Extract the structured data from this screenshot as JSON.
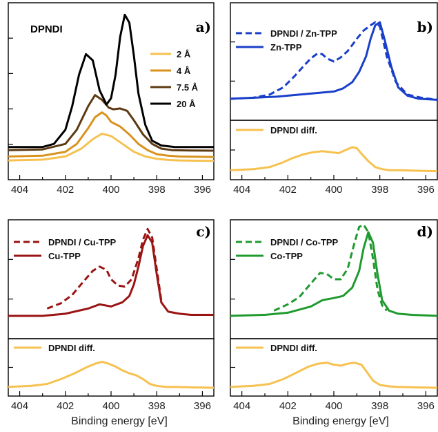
{
  "figure": {
    "xlabel": "Binding energy [eV]",
    "xlim": [
      404.5,
      395.5
    ],
    "xticks": [
      404,
      402,
      400,
      398,
      396
    ]
  },
  "chart_data": [
    {
      "id": "a",
      "type": "line",
      "panel_label": "a)",
      "title": "DPNDI",
      "xlim": [
        404.5,
        395.5
      ],
      "ylim": [
        0,
        1
      ],
      "legend_position": "center-right",
      "series": [
        {
          "name": "2 Å",
          "color": "#f6c14f",
          "dash": false,
          "x": [
            404.5,
            403,
            402,
            401.3,
            400.8,
            400.4,
            400,
            399.5,
            399,
            398.5,
            398,
            397.5,
            397,
            396,
            395.5
          ],
          "y": [
            0.055,
            0.06,
            0.08,
            0.13,
            0.19,
            0.225,
            0.21,
            0.16,
            0.11,
            0.08,
            0.065,
            0.058,
            0.055,
            0.053,
            0.052
          ]
        },
        {
          "name": "4 Å",
          "color": "#d8921e",
          "dash": false,
          "x": [
            404.5,
            403,
            402,
            401.5,
            401,
            400.7,
            400.4,
            400.2,
            400,
            399.6,
            399.2,
            398.8,
            398.4,
            398,
            397.5,
            397,
            396,
            395.5
          ],
          "y": [
            0.08,
            0.085,
            0.11,
            0.16,
            0.26,
            0.33,
            0.36,
            0.34,
            0.3,
            0.27,
            0.22,
            0.16,
            0.12,
            0.095,
            0.085,
            0.08,
            0.078,
            0.077
          ]
        },
        {
          "name": "7.5 Å",
          "color": "#5d3a12",
          "dash": false,
          "x": [
            404.5,
            403,
            402,
            401.5,
            401,
            400.7,
            400.4,
            400.1,
            399.9,
            399.6,
            399.3,
            399,
            398.6,
            398.2,
            397.8,
            397.3,
            396.5,
            395.5
          ],
          "y": [
            0.12,
            0.125,
            0.16,
            0.25,
            0.4,
            0.47,
            0.44,
            0.39,
            0.38,
            0.385,
            0.37,
            0.31,
            0.22,
            0.16,
            0.13,
            0.12,
            0.118,
            0.117
          ]
        },
        {
          "name": "20 Å",
          "color": "#000000",
          "dash": false,
          "x": [
            404.5,
            403,
            402.5,
            402,
            401.7,
            401.4,
            401.1,
            400.8,
            400.5,
            400.2,
            400,
            399.8,
            399.6,
            399.4,
            399.2,
            399,
            398.8,
            398.5,
            398.2,
            397.8,
            397.2,
            396.5,
            395.5
          ],
          "y": [
            0.14,
            0.14,
            0.16,
            0.25,
            0.4,
            0.6,
            0.73,
            0.69,
            0.5,
            0.41,
            0.45,
            0.6,
            0.84,
            0.98,
            0.93,
            0.72,
            0.48,
            0.28,
            0.18,
            0.15,
            0.14,
            0.14,
            0.14
          ]
        }
      ]
    },
    {
      "id": "b",
      "type": "line",
      "panel_label": "b)",
      "xlim": [
        404.5,
        395.5
      ],
      "ylim": [
        0,
        1
      ],
      "legend_position": "top-left",
      "series": [
        {
          "name": "DPNDI / Zn-TPP",
          "color": "#1a3fc9",
          "dash": true,
          "x": [
            404.5,
            403.5,
            402.8,
            402.2,
            401.7,
            401.3,
            401,
            400.7,
            400.5,
            400.3,
            400,
            399.7,
            399.4,
            399.2,
            399,
            398.7,
            398.4,
            398.2,
            398,
            397.7,
            397.3,
            396.8,
            396.2,
            395.5
          ],
          "y": [
            0.14,
            0.15,
            0.18,
            0.25,
            0.36,
            0.46,
            0.53,
            0.58,
            0.57,
            0.53,
            0.5,
            0.54,
            0.6,
            0.66,
            0.72,
            0.8,
            0.85,
            0.88,
            0.84,
            0.55,
            0.3,
            0.18,
            0.15,
            0.13
          ]
        },
        {
          "name": "Zn-TPP",
          "color": "#1a3fc9",
          "dash": false,
          "x": [
            404.5,
            402.5,
            401.5,
            400.5,
            400,
            399.6,
            399.2,
            398.9,
            398.6,
            398.4,
            398.2,
            398,
            397.8,
            397.5,
            397.2,
            396.8,
            396.3,
            395.5
          ],
          "y": [
            0.14,
            0.16,
            0.18,
            0.2,
            0.21,
            0.24,
            0.3,
            0.4,
            0.55,
            0.72,
            0.85,
            0.88,
            0.72,
            0.45,
            0.25,
            0.17,
            0.14,
            0.13
          ]
        }
      ]
    },
    {
      "id": "b-diff",
      "type": "line",
      "xlim": [
        404.5,
        395.5
      ],
      "ylim": [
        0,
        1
      ],
      "legend_position": "top-left",
      "series": [
        {
          "name": "DPNDI diff.",
          "color": "#f6c14f",
          "dash": false,
          "x": [
            404.5,
            403.5,
            402.8,
            402.3,
            401.8,
            401.3,
            400.9,
            400.5,
            400.1,
            399.8,
            399.5,
            399.2,
            399,
            398.8,
            398.5,
            398.2,
            397.9,
            397.6,
            397.2,
            396.5,
            395.5
          ],
          "y": [
            0.12,
            0.14,
            0.18,
            0.26,
            0.36,
            0.44,
            0.48,
            0.5,
            0.48,
            0.46,
            0.52,
            0.58,
            0.56,
            0.45,
            0.3,
            0.18,
            0.14,
            0.12,
            0.12,
            0.11,
            0.1
          ]
        }
      ]
    },
    {
      "id": "c",
      "type": "line",
      "panel_label": "c)",
      "xlim": [
        404.5,
        395.5
      ],
      "ylim": [
        0,
        1
      ],
      "legend_position": "top-left",
      "series": [
        {
          "name": "DPNDI / Cu-TPP",
          "color": "#9b1414",
          "dash": true,
          "x": [
            402.8,
            402.2,
            401.7,
            401.2,
            400.8,
            400.5,
            400.2,
            400,
            399.7,
            399.4,
            399.1,
            398.8,
            398.6,
            398.4,
            398.2,
            398,
            397.8
          ],
          "y": [
            0.22,
            0.27,
            0.35,
            0.48,
            0.58,
            0.62,
            0.59,
            0.5,
            0.44,
            0.43,
            0.5,
            0.7,
            0.88,
            0.98,
            0.9,
            0.6,
            0.3
          ]
        },
        {
          "name": "Cu-TPP",
          "color": "#9b1414",
          "dash": false,
          "x": [
            404.5,
            403,
            402,
            401,
            400.5,
            400,
            399.5,
            399.2,
            399,
            398.8,
            398.6,
            398.4,
            398.2,
            398,
            397.8,
            397.5,
            397,
            396.5,
            395.5
          ],
          "y": [
            0.15,
            0.15,
            0.17,
            0.22,
            0.26,
            0.24,
            0.28,
            0.34,
            0.45,
            0.62,
            0.82,
            0.92,
            0.85,
            0.55,
            0.28,
            0.19,
            0.17,
            0.16,
            0.16
          ]
        }
      ]
    },
    {
      "id": "c-diff",
      "type": "line",
      "xlim": [
        404.5,
        395.5
      ],
      "ylim": [
        0,
        1
      ],
      "legend_position": "top-left",
      "series": [
        {
          "name": "DPNDI diff.",
          "color": "#f6c14f",
          "dash": false,
          "x": [
            404.5,
            403.5,
            402.8,
            402.2,
            401.6,
            401.1,
            400.7,
            400.4,
            400.1,
            399.8,
            399.5,
            399.2,
            398.9,
            398.6,
            398.3,
            398,
            397.6,
            397.2,
            396.5,
            395.5
          ],
          "y": [
            0.12,
            0.14,
            0.18,
            0.28,
            0.4,
            0.52,
            0.6,
            0.64,
            0.6,
            0.54,
            0.46,
            0.4,
            0.36,
            0.28,
            0.18,
            0.14,
            0.12,
            0.12,
            0.11,
            0.1
          ]
        }
      ]
    },
    {
      "id": "d",
      "type": "line",
      "panel_label": "d)",
      "xlim": [
        404.5,
        395.5
      ],
      "ylim": [
        0,
        1
      ],
      "legend_position": "top-left",
      "series": [
        {
          "name": "DPNDI / Co-TPP",
          "color": "#1f9a2e",
          "dash": true,
          "x": [
            402.6,
            402,
            401.5,
            401,
            400.6,
            400.3,
            400,
            399.7,
            399.4,
            399.1,
            398.9,
            398.7,
            398.5,
            398.3,
            398.1,
            397.9,
            397.7
          ],
          "y": [
            0.2,
            0.26,
            0.33,
            0.46,
            0.56,
            0.55,
            0.5,
            0.5,
            0.6,
            0.85,
            1.0,
            1.02,
            0.95,
            0.7,
            0.4,
            0.25,
            0.2
          ]
        },
        {
          "name": "Co-TPP",
          "color": "#1f9a2e",
          "dash": false,
          "x": [
            404.5,
            403,
            402,
            401,
            400.5,
            400,
            399.6,
            399.2,
            398.9,
            398.7,
            398.5,
            398.3,
            398.1,
            397.9,
            397.6,
            397.2,
            396.6,
            395.5
          ],
          "y": [
            0.15,
            0.16,
            0.18,
            0.24,
            0.3,
            0.32,
            0.34,
            0.42,
            0.58,
            0.8,
            0.95,
            0.85,
            0.55,
            0.3,
            0.2,
            0.17,
            0.16,
            0.15
          ]
        }
      ]
    },
    {
      "id": "d-diff",
      "type": "line",
      "xlim": [
        404.5,
        395.5
      ],
      "ylim": [
        0,
        1
      ],
      "legend_position": "top-left",
      "series": [
        {
          "name": "DPNDI diff.",
          "color": "#f6c14f",
          "dash": false,
          "x": [
            404.5,
            403.5,
            402.8,
            402.2,
            401.6,
            401.1,
            400.7,
            400.3,
            400,
            399.7,
            399.4,
            399.1,
            398.8,
            398.6,
            398.3,
            398,
            397.6,
            397.2,
            396.5,
            395.5
          ],
          "y": [
            0.12,
            0.14,
            0.18,
            0.28,
            0.42,
            0.54,
            0.6,
            0.62,
            0.58,
            0.56,
            0.6,
            0.62,
            0.58,
            0.45,
            0.25,
            0.16,
            0.13,
            0.12,
            0.11,
            0.1
          ]
        }
      ]
    }
  ]
}
